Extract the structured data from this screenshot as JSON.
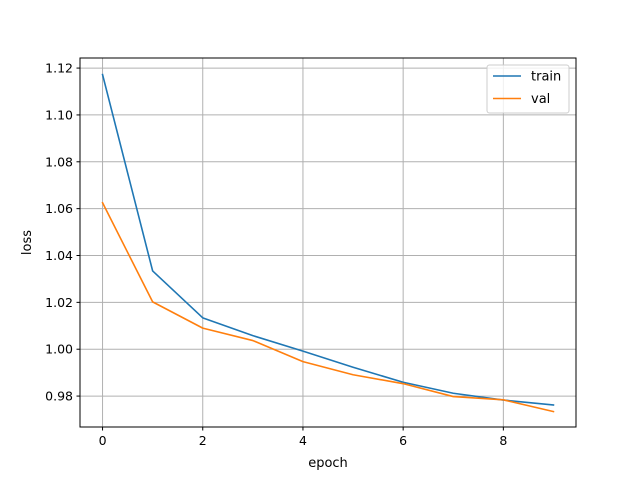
{
  "chart_data": {
    "type": "line",
    "title": "",
    "xlabel": "epoch",
    "ylabel": "loss",
    "xlim": [
      -0.45,
      9.45
    ],
    "ylim": [
      0.9668,
      1.1243
    ],
    "xticks": [
      0,
      2,
      4,
      6,
      8
    ],
    "xtick_labels": [
      "0",
      "2",
      "4",
      "6",
      "8"
    ],
    "yticks": [
      0.98,
      1.0,
      1.02,
      1.04,
      1.06,
      1.08,
      1.1,
      1.12
    ],
    "ytick_labels": [
      "0.98",
      "1.00",
      "1.02",
      "1.04",
      "1.06",
      "1.08",
      "1.10",
      "1.12"
    ],
    "grid": true,
    "legend_position": "upper right",
    "x": [
      0,
      1,
      2,
      3,
      4,
      5,
      6,
      7,
      8,
      9
    ],
    "series": [
      {
        "name": "train",
        "color": "#1f77b4",
        "values": [
          1.1172,
          1.0334,
          1.0134,
          1.0058,
          0.9992,
          0.9923,
          0.9859,
          0.9812,
          0.9783,
          0.9762
        ]
      },
      {
        "name": "val",
        "color": "#ff7f0e",
        "values": [
          1.0625,
          1.0202,
          1.009,
          1.0037,
          0.9947,
          0.9891,
          0.9853,
          0.9798,
          0.9784,
          0.9734
        ]
      }
    ]
  }
}
